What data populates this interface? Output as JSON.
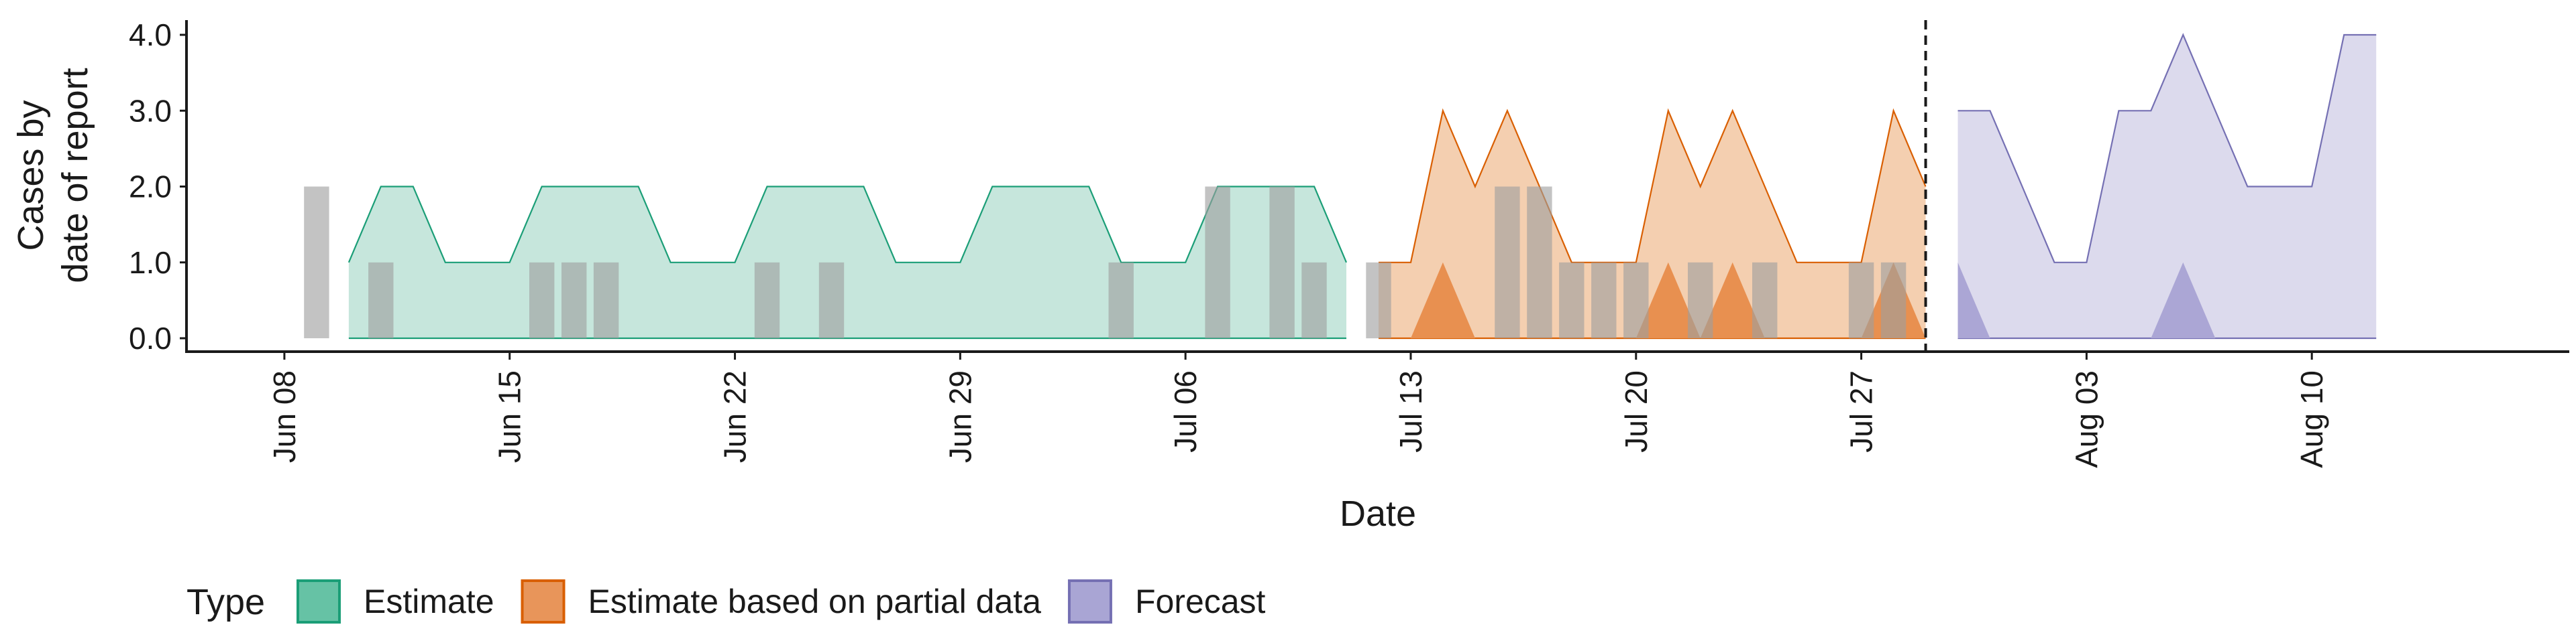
{
  "chart_data": {
    "type": "area",
    "xlabel": "Date",
    "ylabel": [
      "Cases by",
      "date of report"
    ],
    "ylim": [
      0,
      4
    ],
    "y_ticks": [
      "0.0",
      "1.0",
      "2.0",
      "3.0",
      "4.0"
    ],
    "x_ticks": [
      {
        "label": "Jun 08",
        "date": "2020-06-08"
      },
      {
        "label": "Jun 15",
        "date": "2020-06-15"
      },
      {
        "label": "Jun 22",
        "date": "2020-06-22"
      },
      {
        "label": "Jun 29",
        "date": "2020-06-29"
      },
      {
        "label": "Jul 06",
        "date": "2020-07-06"
      },
      {
        "label": "Jul 13",
        "date": "2020-07-13"
      },
      {
        "label": "Jul 20",
        "date": "2020-07-20"
      },
      {
        "label": "Jul 27",
        "date": "2020-07-27"
      },
      {
        "label": "Aug 03",
        "date": "2020-08-03"
      },
      {
        "label": "Aug 10",
        "date": "2020-08-10"
      }
    ],
    "x_range": [
      "2020-06-05",
      "2020-08-18"
    ],
    "forecast_start_line": "2020-07-29",
    "legend": {
      "title": "Type",
      "position": "bottom",
      "items": [
        {
          "label": "Estimate",
          "fill": "#66c2a5",
          "stroke": "#1b9e77"
        },
        {
          "label": "Estimate based on partial data",
          "fill": "#e8955a",
          "stroke": "#d95f02"
        },
        {
          "label": "Forecast",
          "fill": "#a9a5d4",
          "stroke": "#7570b3"
        }
      ]
    },
    "colors": {
      "estimate_fill": "#c6e6dc",
      "estimate_line": "#1b9e77",
      "estimate_inner": "#8ccfb7",
      "partial_fill": "#f4cfb0",
      "partial_line": "#d95f02",
      "partial_inner": "#e89050",
      "forecast_fill": "#dcdaed",
      "forecast_line": "#7570b3",
      "forecast_inner": "#aba6d5",
      "observed_bar": "#9e9e9e"
    },
    "series": [
      {
        "type": "Estimate",
        "dates": [
          "2020-06-10",
          "2020-06-11",
          "2020-06-12",
          "2020-06-13",
          "2020-06-14",
          "2020-06-15",
          "2020-06-16",
          "2020-06-17",
          "2020-06-18",
          "2020-06-19",
          "2020-06-20",
          "2020-06-21",
          "2020-06-22",
          "2020-06-23",
          "2020-06-24",
          "2020-06-25",
          "2020-06-26",
          "2020-06-27",
          "2020-06-28",
          "2020-06-29",
          "2020-06-30",
          "2020-07-01",
          "2020-07-02",
          "2020-07-03",
          "2020-07-04",
          "2020-07-05",
          "2020-07-06",
          "2020-07-07",
          "2020-07-08",
          "2020-07-09",
          "2020-07-10",
          "2020-07-11"
        ],
        "upper": [
          1,
          2,
          2,
          1,
          1,
          1,
          2,
          2,
          2,
          2,
          1,
          1,
          1,
          2,
          2,
          2,
          2,
          1,
          1,
          1,
          2,
          2,
          2,
          2,
          1,
          1,
          1,
          2,
          2,
          2,
          2,
          1
        ],
        "lower": [
          0,
          0,
          0,
          0,
          0,
          0,
          0,
          0,
          0,
          0,
          0,
          0,
          0,
          0,
          0,
          0,
          0,
          0,
          0,
          0,
          0,
          0,
          0,
          0,
          0,
          0,
          0,
          0,
          0,
          0,
          0,
          0
        ],
        "inner_upper": [
          0,
          0,
          0,
          0,
          0,
          0,
          0,
          0,
          0,
          0,
          0,
          0,
          0,
          0,
          0,
          0,
          0,
          0,
          0,
          0,
          0,
          0,
          0,
          0,
          0,
          0,
          0,
          0,
          0,
          0,
          0,
          0
        ]
      },
      {
        "type": "Estimate based on partial data",
        "dates": [
          "2020-07-12",
          "2020-07-13",
          "2020-07-14",
          "2020-07-15",
          "2020-07-16",
          "2020-07-17",
          "2020-07-18",
          "2020-07-19",
          "2020-07-20",
          "2020-07-21",
          "2020-07-22",
          "2020-07-23",
          "2020-07-24",
          "2020-07-25",
          "2020-07-26",
          "2020-07-27",
          "2020-07-28",
          "2020-07-29"
        ],
        "upper": [
          1,
          1,
          3,
          2,
          3,
          2,
          1,
          1,
          1,
          3,
          2,
          3,
          2,
          1,
          1,
          1,
          3,
          2
        ],
        "lower": [
          0,
          0,
          0,
          0,
          0,
          0,
          0,
          0,
          0,
          0,
          0,
          0,
          0,
          0,
          0,
          0,
          0,
          0
        ],
        "inner_upper": [
          0,
          0,
          1,
          0,
          0,
          0,
          0,
          0,
          0,
          1,
          0,
          1,
          0,
          0,
          0,
          0,
          1,
          0
        ]
      },
      {
        "type": "Forecast",
        "dates": [
          "2020-07-30",
          "2020-07-31",
          "2020-08-01",
          "2020-08-02",
          "2020-08-03",
          "2020-08-04",
          "2020-08-05",
          "2020-08-06",
          "2020-08-07",
          "2020-08-08",
          "2020-08-09",
          "2020-08-10",
          "2020-08-11",
          "2020-08-12"
        ],
        "upper": [
          3,
          3,
          2,
          1,
          1,
          3,
          3,
          4,
          3,
          2,
          2,
          2,
          4,
          4
        ],
        "lower": [
          0,
          0,
          0,
          0,
          0,
          0,
          0,
          0,
          0,
          0,
          0,
          0,
          0,
          0
        ],
        "inner_upper": [
          1,
          0,
          0,
          0,
          0,
          0,
          0,
          1,
          0,
          0,
          0,
          0,
          0,
          0
        ]
      }
    ],
    "observed_cases": [
      {
        "date": "2020-06-09",
        "value": 2
      },
      {
        "date": "2020-06-11",
        "value": 1
      },
      {
        "date": "2020-06-16",
        "value": 1
      },
      {
        "date": "2020-06-17",
        "value": 1
      },
      {
        "date": "2020-06-18",
        "value": 1
      },
      {
        "date": "2020-06-23",
        "value": 1
      },
      {
        "date": "2020-06-25",
        "value": 1
      },
      {
        "date": "2020-07-04",
        "value": 1
      },
      {
        "date": "2020-07-07",
        "value": 2
      },
      {
        "date": "2020-07-09",
        "value": 2
      },
      {
        "date": "2020-07-10",
        "value": 1
      },
      {
        "date": "2020-07-12",
        "value": 1
      },
      {
        "date": "2020-07-16",
        "value": 2
      },
      {
        "date": "2020-07-17",
        "value": 2
      },
      {
        "date": "2020-07-18",
        "value": 1
      },
      {
        "date": "2020-07-19",
        "value": 1
      },
      {
        "date": "2020-07-20",
        "value": 1
      },
      {
        "date": "2020-07-22",
        "value": 1
      },
      {
        "date": "2020-07-24",
        "value": 1
      },
      {
        "date": "2020-07-27",
        "value": 1
      },
      {
        "date": "2020-07-28",
        "value": 1
      }
    ]
  }
}
